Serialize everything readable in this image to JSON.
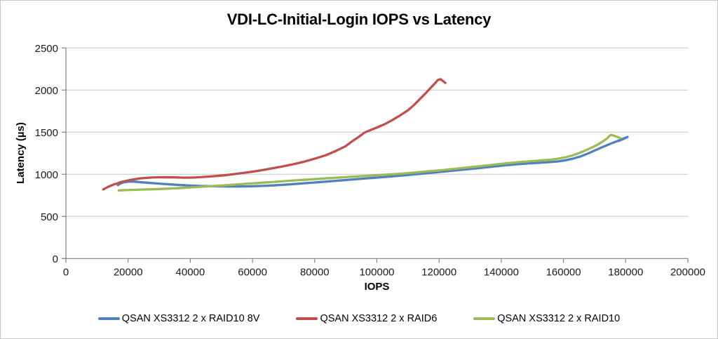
{
  "chart_data": {
    "type": "line",
    "title": "VDI-LC-Initial-Login IOPS vs Latency",
    "xlabel": "IOPS",
    "ylabel": "Latency (µs)",
    "xlim": [
      0,
      200000
    ],
    "ylim": [
      0,
      2500
    ],
    "x_ticks": [
      0,
      20000,
      40000,
      60000,
      80000,
      100000,
      120000,
      140000,
      160000,
      180000,
      200000
    ],
    "x_tick_labels": [
      "0",
      "20000",
      "40000",
      "60000",
      "80000",
      "100000",
      "120000",
      "140000",
      "160000",
      "180000",
      "200000"
    ],
    "y_ticks": [
      0,
      500,
      1000,
      1500,
      2000,
      2500
    ],
    "y_tick_labels": [
      "0",
      "500",
      "1000",
      "1500",
      "2000",
      "2500"
    ],
    "grid": "horizontal-only",
    "legend_position": "bottom",
    "colors": {
      "gridline": "#c6c6c6",
      "axis": "#808080",
      "tick_text": "#1a1a1a"
    },
    "series": [
      {
        "name": "QSAN XS3312 2 x RAID10 8V",
        "color": "#4F81BD",
        "points": [
          [
            16700,
            872
          ],
          [
            17500,
            890
          ],
          [
            18700,
            905
          ],
          [
            20000,
            912
          ],
          [
            21500,
            913
          ],
          [
            23500,
            908
          ],
          [
            26000,
            900
          ],
          [
            28500,
            893
          ],
          [
            31000,
            886
          ],
          [
            34000,
            879
          ],
          [
            37000,
            872
          ],
          [
            40000,
            866
          ],
          [
            43500,
            861
          ],
          [
            47000,
            858
          ],
          [
            50500,
            856
          ],
          [
            54000,
            855
          ],
          [
            57500,
            856
          ],
          [
            61000,
            859
          ],
          [
            64500,
            864
          ],
          [
            68000,
            871
          ],
          [
            71500,
            879
          ],
          [
            75000,
            888
          ],
          [
            78500,
            898
          ],
          [
            82000,
            908
          ],
          [
            85500,
            918
          ],
          [
            89000,
            929
          ],
          [
            92500,
            939
          ],
          [
            96000,
            949
          ],
          [
            99500,
            959
          ],
          [
            103000,
            969
          ],
          [
            106500,
            980
          ],
          [
            110000,
            992
          ],
          [
            113500,
            1004
          ],
          [
            117000,
            1016
          ],
          [
            120500,
            1028
          ],
          [
            124000,
            1041
          ],
          [
            127500,
            1053
          ],
          [
            131000,
            1066
          ],
          [
            134500,
            1080
          ],
          [
            138000,
            1094
          ],
          [
            141500,
            1107
          ],
          [
            145000,
            1118
          ],
          [
            148500,
            1128
          ],
          [
            152000,
            1136
          ],
          [
            155000,
            1143
          ],
          [
            158000,
            1152
          ],
          [
            160500,
            1165
          ],
          [
            163000,
            1185
          ],
          [
            165500,
            1212
          ],
          [
            168000,
            1248
          ],
          [
            170500,
            1290
          ],
          [
            173000,
            1330
          ],
          [
            175500,
            1368
          ],
          [
            177800,
            1402
          ],
          [
            179800,
            1432
          ],
          [
            180600,
            1443
          ],
          [
            179300,
            1420
          ],
          [
            177600,
            1394
          ]
        ]
      },
      {
        "name": "QSAN XS3312 2 x RAID6",
        "color": "#C0504D",
        "points": [
          [
            12000,
            820
          ],
          [
            13500,
            850
          ],
          [
            15500,
            880
          ],
          [
            18000,
            910
          ],
          [
            21000,
            935
          ],
          [
            24000,
            952
          ],
          [
            27500,
            962
          ],
          [
            31000,
            965
          ],
          [
            34500,
            963
          ],
          [
            38000,
            960
          ],
          [
            41500,
            962
          ],
          [
            45000,
            970
          ],
          [
            48500,
            980
          ],
          [
            52000,
            992
          ],
          [
            55500,
            1008
          ],
          [
            59000,
            1025
          ],
          [
            62500,
            1045
          ],
          [
            66000,
            1068
          ],
          [
            69500,
            1092
          ],
          [
            73000,
            1118
          ],
          [
            76500,
            1148
          ],
          [
            80000,
            1185
          ],
          [
            83500,
            1225
          ],
          [
            87000,
            1280
          ],
          [
            90000,
            1335
          ],
          [
            92000,
            1390
          ],
          [
            94000,
            1440
          ],
          [
            96000,
            1495
          ],
          [
            98000,
            1525
          ],
          [
            100000,
            1555
          ],
          [
            102500,
            1595
          ],
          [
            105000,
            1645
          ],
          [
            107500,
            1700
          ],
          [
            110000,
            1760
          ],
          [
            112000,
            1825
          ],
          [
            114000,
            1900
          ],
          [
            116000,
            1975
          ],
          [
            117500,
            2035
          ],
          [
            118800,
            2085
          ],
          [
            119600,
            2120
          ],
          [
            120500,
            2128
          ],
          [
            122000,
            2085
          ]
        ]
      },
      {
        "name": "QSAN XS3312 2 x RAID10",
        "color": "#9BBB59",
        "points": [
          [
            17000,
            808
          ],
          [
            19000,
            812
          ],
          [
            21500,
            815
          ],
          [
            24000,
            818
          ],
          [
            27000,
            821
          ],
          [
            30000,
            825
          ],
          [
            33000,
            830
          ],
          [
            36000,
            835
          ],
          [
            39000,
            841
          ],
          [
            42000,
            848
          ],
          [
            45000,
            855
          ],
          [
            48000,
            862
          ],
          [
            51500,
            870
          ],
          [
            55000,
            879
          ],
          [
            58500,
            888
          ],
          [
            62000,
            897
          ],
          [
            65500,
            906
          ],
          [
            69000,
            915
          ],
          [
            72500,
            924
          ],
          [
            76000,
            933
          ],
          [
            79500,
            941
          ],
          [
            83000,
            950
          ],
          [
            86500,
            958
          ],
          [
            90000,
            966
          ],
          [
            93500,
            974
          ],
          [
            97000,
            982
          ],
          [
            100500,
            990
          ],
          [
            104000,
            998
          ],
          [
            107500,
            1007
          ],
          [
            111000,
            1017
          ],
          [
            114500,
            1028
          ],
          [
            118000,
            1040
          ],
          [
            121500,
            1052
          ],
          [
            125000,
            1065
          ],
          [
            128500,
            1078
          ],
          [
            132000,
            1092
          ],
          [
            135500,
            1106
          ],
          [
            139000,
            1120
          ],
          [
            142500,
            1133
          ],
          [
            146000,
            1145
          ],
          [
            149500,
            1155
          ],
          [
            152500,
            1163
          ],
          [
            155500,
            1172
          ],
          [
            158000,
            1183
          ],
          [
            160500,
            1200
          ],
          [
            163000,
            1225
          ],
          [
            165500,
            1258
          ],
          [
            168000,
            1298
          ],
          [
            170500,
            1342
          ],
          [
            172500,
            1385
          ],
          [
            174000,
            1425
          ],
          [
            174900,
            1458
          ],
          [
            175300,
            1468
          ],
          [
            176500,
            1455
          ],
          [
            178300,
            1428
          ]
        ]
      }
    ]
  }
}
